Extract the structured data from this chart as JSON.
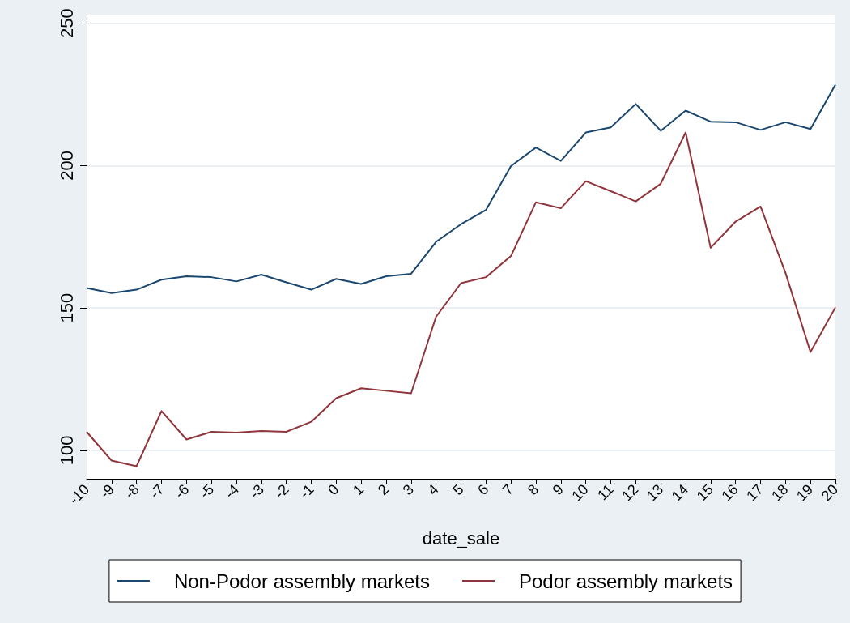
{
  "chart_data": {
    "type": "line",
    "xlabel": "date_sale",
    "x": [
      -10,
      -9,
      -8,
      -7,
      -6,
      -5,
      -4,
      -3,
      -2,
      -1,
      0,
      1,
      2,
      3,
      4,
      5,
      6,
      7,
      8,
      9,
      10,
      11,
      12,
      13,
      14,
      15,
      16,
      17,
      18,
      19,
      20
    ],
    "series": [
      {
        "name": "Non-Podor assembly markets",
        "color": "#1a476f",
        "values": [
          157,
          155.2,
          156.4,
          159.9,
          161.1,
          160.8,
          159.3,
          161.7,
          159,
          156.4,
          160.2,
          158.4,
          161.1,
          162,
          173.2,
          179.4,
          184.4,
          199.8,
          206.3,
          201.6,
          211.6,
          213.4,
          221.6,
          212.2,
          219.3,
          215.4,
          215.2,
          212.5,
          215.2,
          212.8,
          228.4
        ]
      },
      {
        "name": "Podor assembly markets",
        "color": "#90353b",
        "values": [
          106.5,
          96.4,
          94.4,
          113.8,
          103.8,
          106.5,
          106.2,
          106.8,
          106.5,
          110,
          118.3,
          121.8,
          120.9,
          120,
          146.9,
          158.7,
          160.8,
          168.2,
          187.1,
          185,
          194.5,
          191,
          187.4,
          193.6,
          211.6,
          171.1,
          180.3,
          185.6,
          162.3,
          134.5,
          150.2
        ]
      }
    ],
    "xlim": [
      -10,
      20
    ],
    "xticks": [
      -10,
      -9,
      -8,
      -7,
      -6,
      -5,
      -4,
      -3,
      -2,
      -1,
      0,
      1,
      2,
      3,
      4,
      5,
      6,
      7,
      8,
      9,
      10,
      11,
      12,
      13,
      14,
      15,
      16,
      17,
      18,
      19,
      20
    ],
    "ylim": [
      90,
      253
    ],
    "yticks": [
      100,
      150,
      200,
      250
    ],
    "grid": "y",
    "legend": "bottom",
    "marker": "none",
    "line_style": "solid"
  }
}
